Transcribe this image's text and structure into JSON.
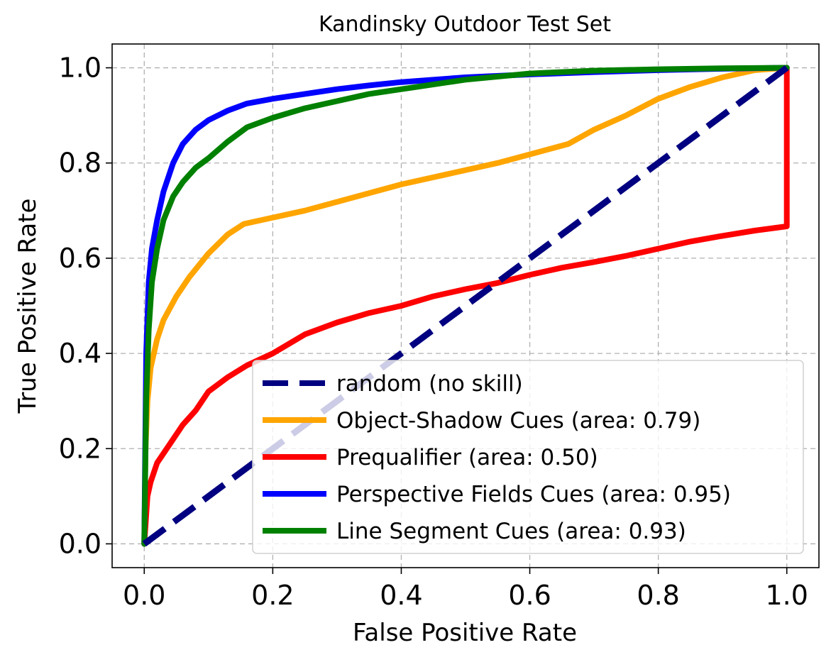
{
  "chart_data": {
    "type": "line",
    "title": "Kandinsky Outdoor Test Set",
    "xlabel": "False Positive Rate",
    "ylabel": "True Positive Rate",
    "xlim": [
      -0.05,
      1.05
    ],
    "ylim": [
      -0.05,
      1.05
    ],
    "xticks": [
      "0.0",
      "0.2",
      "0.4",
      "0.6",
      "0.8",
      "1.0"
    ],
    "yticks": [
      "0.0",
      "0.2",
      "0.4",
      "0.6",
      "0.8",
      "1.0"
    ],
    "xtick_values": [
      0,
      0.2,
      0.4,
      0.6,
      0.8,
      1.0
    ],
    "ytick_values": [
      0,
      0.2,
      0.4,
      0.6,
      0.8,
      1.0
    ],
    "grid": true,
    "legend_position": "lower-right",
    "series": [
      {
        "name": "random (no skill)",
        "color": "#000080",
        "style": "dashed",
        "x": [
          0,
          1
        ],
        "y": [
          0,
          1
        ]
      },
      {
        "name": "Object-Shadow Cues (area: 0.79)",
        "color": "#FFA500",
        "style": "solid",
        "x": [
          0,
          0.002,
          0.005,
          0.01,
          0.02,
          0.03,
          0.05,
          0.07,
          0.1,
          0.13,
          0.155,
          0.25,
          0.4,
          0.55,
          0.66,
          0.7,
          0.75,
          0.8,
          0.85,
          0.9,
          0.95,
          1.0
        ],
        "y": [
          0,
          0.2,
          0.3,
          0.37,
          0.43,
          0.47,
          0.52,
          0.56,
          0.61,
          0.65,
          0.672,
          0.7,
          0.755,
          0.8,
          0.84,
          0.87,
          0.9,
          0.935,
          0.96,
          0.98,
          0.995,
          1.0
        ]
      },
      {
        "name": "Prequalifier (area: 0.50)",
        "color": "#FF0000",
        "style": "solid",
        "x": [
          0,
          0.005,
          0.01,
          0.02,
          0.04,
          0.06,
          0.08,
          0.1,
          0.13,
          0.16,
          0.2,
          0.25,
          0.3,
          0.35,
          0.4,
          0.45,
          0.5,
          0.55,
          0.6,
          0.65,
          0.7,
          0.75,
          0.8,
          0.85,
          0.9,
          0.95,
          1.0,
          1.0
        ],
        "y": [
          0,
          0.1,
          0.13,
          0.17,
          0.21,
          0.25,
          0.28,
          0.32,
          0.35,
          0.375,
          0.4,
          0.44,
          0.465,
          0.485,
          0.5,
          0.52,
          0.535,
          0.548,
          0.565,
          0.58,
          0.592,
          0.605,
          0.62,
          0.635,
          0.647,
          0.658,
          0.667,
          1.0
        ]
      },
      {
        "name": "Perspective Fields Cues (area: 0.95)",
        "color": "#0000FF",
        "style": "solid",
        "x": [
          0,
          0.003,
          0.007,
          0.012,
          0.02,
          0.03,
          0.045,
          0.06,
          0.08,
          0.1,
          0.13,
          0.16,
          0.2,
          0.25,
          0.3,
          0.35,
          0.4,
          0.5,
          0.6,
          0.7,
          0.8,
          0.9,
          1.0
        ],
        "y": [
          0,
          0.4,
          0.55,
          0.62,
          0.68,
          0.74,
          0.8,
          0.84,
          0.87,
          0.89,
          0.91,
          0.925,
          0.935,
          0.945,
          0.955,
          0.963,
          0.97,
          0.98,
          0.986,
          0.991,
          0.995,
          0.998,
          1.0
        ]
      },
      {
        "name": "Line Segment Cues (area: 0.93)",
        "color": "#008000",
        "style": "solid",
        "x": [
          0,
          0.003,
          0.007,
          0.012,
          0.02,
          0.03,
          0.045,
          0.06,
          0.08,
          0.1,
          0.13,
          0.16,
          0.2,
          0.25,
          0.3,
          0.35,
          0.4,
          0.5,
          0.6,
          0.7,
          0.8,
          0.9,
          1.0
        ],
        "y": [
          0,
          0.3,
          0.45,
          0.55,
          0.62,
          0.68,
          0.73,
          0.76,
          0.79,
          0.81,
          0.845,
          0.875,
          0.895,
          0.915,
          0.93,
          0.945,
          0.955,
          0.975,
          0.988,
          0.994,
          0.997,
          0.999,
          1.0
        ]
      }
    ]
  }
}
